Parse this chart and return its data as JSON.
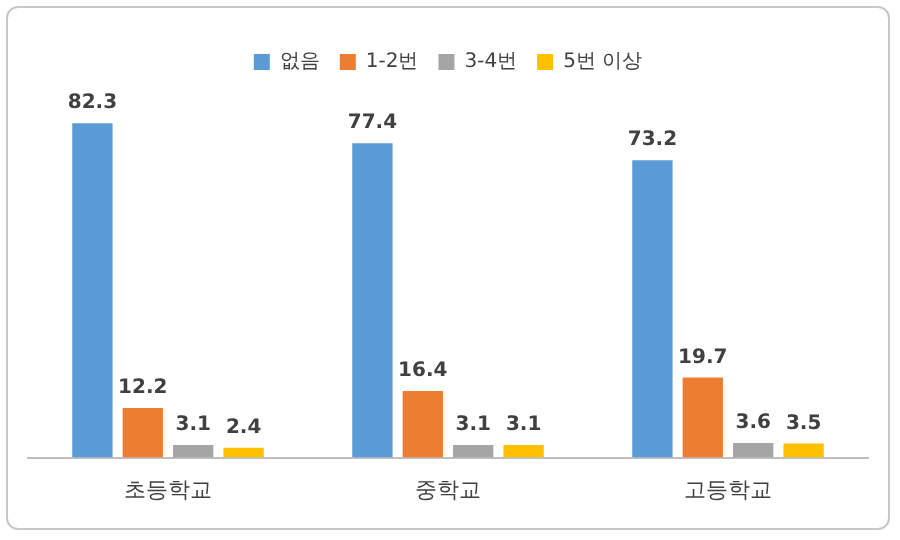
{
  "chart_data": {
    "type": "bar",
    "categories": [
      "초등학교",
      "중학교",
      "고등학교"
    ],
    "series": [
      {
        "name": "없음",
        "color": "#5b9bd5",
        "values": [
          82.3,
          77.4,
          73.2
        ]
      },
      {
        "name": "1-2번",
        "color": "#ed7d31",
        "values": [
          12.2,
          16.4,
          19.7
        ]
      },
      {
        "name": "3-4번",
        "color": "#a5a5a5",
        "values": [
          3.1,
          3.1,
          3.6
        ]
      },
      {
        "name": "5번 이상",
        "color": "#ffc000",
        "values": [
          2.4,
          3.1,
          3.5
        ]
      }
    ],
    "data_labels": true,
    "legend": "top",
    "grid": false
  }
}
